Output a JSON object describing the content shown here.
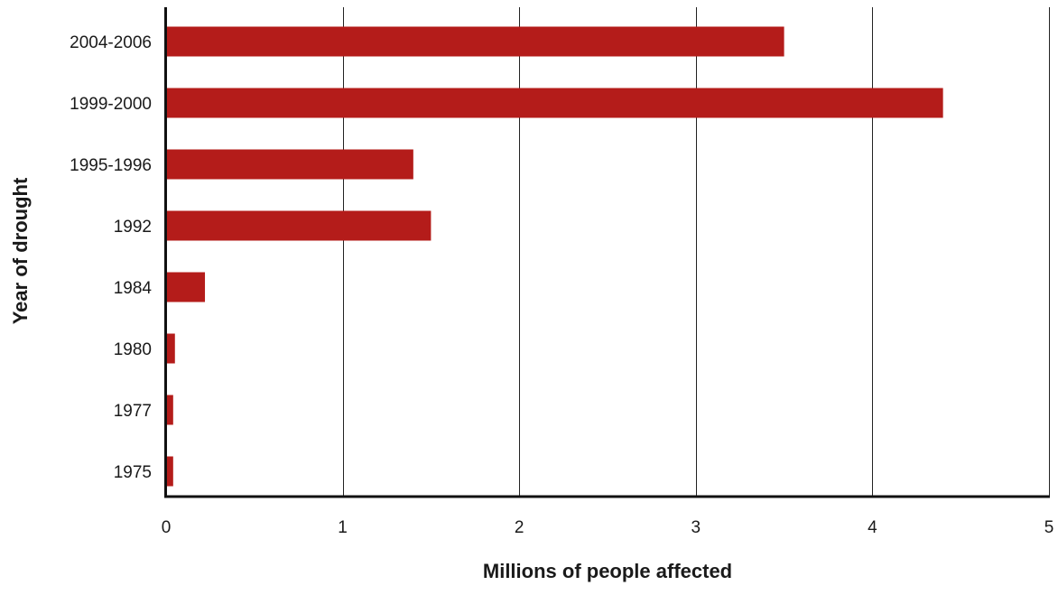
{
  "chart_data": {
    "type": "bar",
    "orientation": "horizontal",
    "title": "",
    "xlabel": "Millions of people affected",
    "ylabel": "Year of drought",
    "categories": [
      "2004-2006",
      "1999-2000",
      "1995-1996",
      "1992",
      "1984",
      "1980",
      "1977",
      "1975"
    ],
    "values": [
      3.5,
      4.4,
      1.4,
      1.5,
      0.22,
      0.05,
      0.04,
      0.04
    ],
    "xlim": [
      0,
      5
    ],
    "xticks": [
      "0",
      "1",
      "2",
      "3",
      "4",
      "5"
    ],
    "grid": "vertical",
    "legend": "none",
    "bar_color": "#b41c1a",
    "grid_color": "#222222"
  }
}
